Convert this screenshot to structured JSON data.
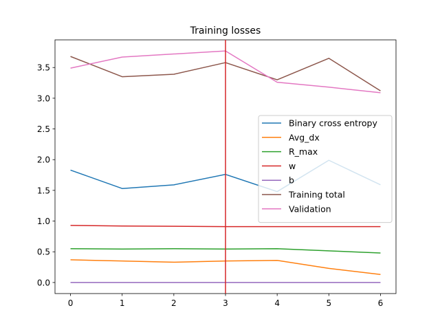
{
  "chart_data": {
    "type": "line",
    "title": "Training losses",
    "xlabel": "",
    "ylabel": "",
    "x": [
      0,
      1,
      2,
      3,
      4,
      5,
      6
    ],
    "xlim": [
      -0.3,
      6.3
    ],
    "ylim": [
      -0.18,
      3.95
    ],
    "xticks": [
      0,
      1,
      2,
      3,
      4,
      5,
      6
    ],
    "yticks": [
      0.0,
      0.5,
      1.0,
      1.5,
      2.0,
      2.5,
      3.0,
      3.5
    ],
    "ytick_labels": [
      "0.0",
      "0.5",
      "1.0",
      "1.5",
      "2.0",
      "2.5",
      "3.0",
      "3.5"
    ],
    "grid": false,
    "legend_position": "center-right",
    "vline": {
      "x": 3,
      "color": "#d62728"
    },
    "series": [
      {
        "name": "Binary cross entropy",
        "color": "#1f77b4",
        "values": [
          1.83,
          1.53,
          1.59,
          1.76,
          1.48,
          1.99,
          1.59
        ]
      },
      {
        "name": "Avg_dx",
        "color": "#ff7f0e",
        "values": [
          0.37,
          0.35,
          0.33,
          0.35,
          0.36,
          0.23,
          0.13
        ]
      },
      {
        "name": "R_max",
        "color": "#2ca02c",
        "values": [
          0.55,
          0.545,
          0.55,
          0.545,
          0.55,
          0.515,
          0.48
        ]
      },
      {
        "name": "w",
        "color": "#d62728",
        "values": [
          0.93,
          0.92,
          0.915,
          0.91,
          0.91,
          0.91,
          0.91
        ]
      },
      {
        "name": "b",
        "color": "#9467bd",
        "values": [
          0.0,
          0.0,
          0.0,
          0.0,
          0.0,
          0.0,
          0.0
        ]
      },
      {
        "name": "Training total",
        "color": "#8c564b",
        "values": [
          3.68,
          3.35,
          3.39,
          3.58,
          3.3,
          3.65,
          3.12
        ]
      },
      {
        "name": "Validation",
        "color": "#e377c2",
        "values": [
          3.49,
          3.67,
          3.72,
          3.77,
          3.26,
          3.18,
          3.09
        ]
      }
    ]
  }
}
